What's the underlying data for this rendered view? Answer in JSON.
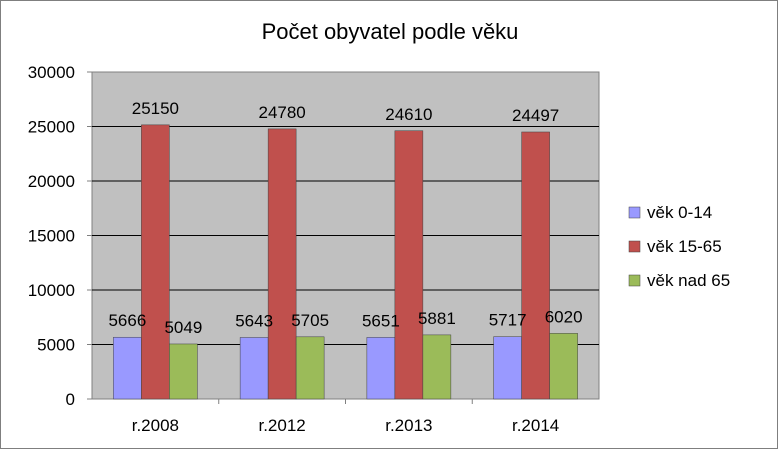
{
  "chart_data": {
    "type": "bar",
    "title": "Počet obyvatel podle věku",
    "xlabel": "",
    "ylabel": "",
    "categories": [
      "r.2008",
      "r.2012",
      "r.2013",
      "r.2014"
    ],
    "ylim": [
      0,
      30000
    ],
    "yticks": [
      0,
      5000,
      10000,
      15000,
      20000,
      25000,
      30000
    ],
    "grid": true,
    "legend_position": "right",
    "plot_background": "#c0c0c0",
    "series": [
      {
        "name": "věk 0-14",
        "color": "#9999ff",
        "values": [
          5666,
          5643,
          5651,
          5717
        ]
      },
      {
        "name": "věk 15-65",
        "color": "#c0504d",
        "values": [
          25150,
          24780,
          24610,
          24497
        ]
      },
      {
        "name": "věk nad 65",
        "color": "#9bbb59",
        "values": [
          5049,
          5705,
          5881,
          6020
        ]
      }
    ]
  }
}
